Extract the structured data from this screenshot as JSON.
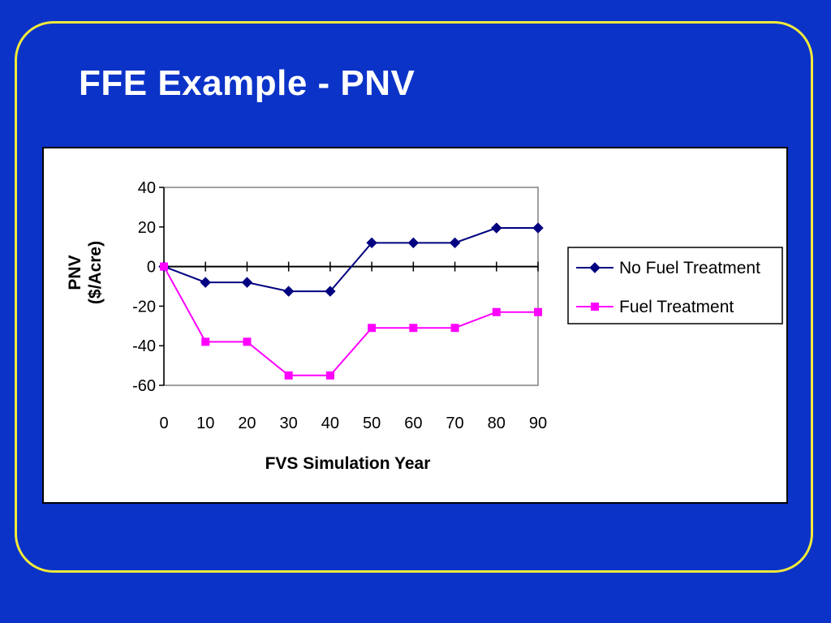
{
  "slide": {
    "title": "FFE Example - PNV",
    "background_color": "#0b33c8",
    "frame_color": "#f2ea3a"
  },
  "chart_data": {
    "type": "line",
    "title": "",
    "xlabel": "FVS Simulation Year",
    "ylabel": [
      "PNV",
      "($/Acre)"
    ],
    "x": [
      0,
      10,
      20,
      30,
      40,
      50,
      60,
      70,
      80,
      90
    ],
    "xticks": [
      "0",
      "10",
      "20",
      "30",
      "40",
      "50",
      "60",
      "70",
      "80",
      "90"
    ],
    "yticks": [
      "40",
      "20",
      "0",
      "-20",
      "-40",
      "-60"
    ],
    "ylim": [
      -60,
      40
    ],
    "grid": false,
    "legend": "right",
    "series": [
      {
        "name": "No Fuel Treatment",
        "color": "#000080",
        "marker": "diamond",
        "values": [
          0,
          -8,
          -8,
          -12.5,
          -12.5,
          12,
          12,
          12,
          19.5,
          19.5
        ]
      },
      {
        "name": "Fuel Treatment",
        "color": "#ff00ff",
        "marker": "square",
        "values": [
          0,
          -38,
          -38,
          -55,
          -55,
          -31,
          -31,
          -31,
          -23,
          -23
        ]
      }
    ]
  }
}
